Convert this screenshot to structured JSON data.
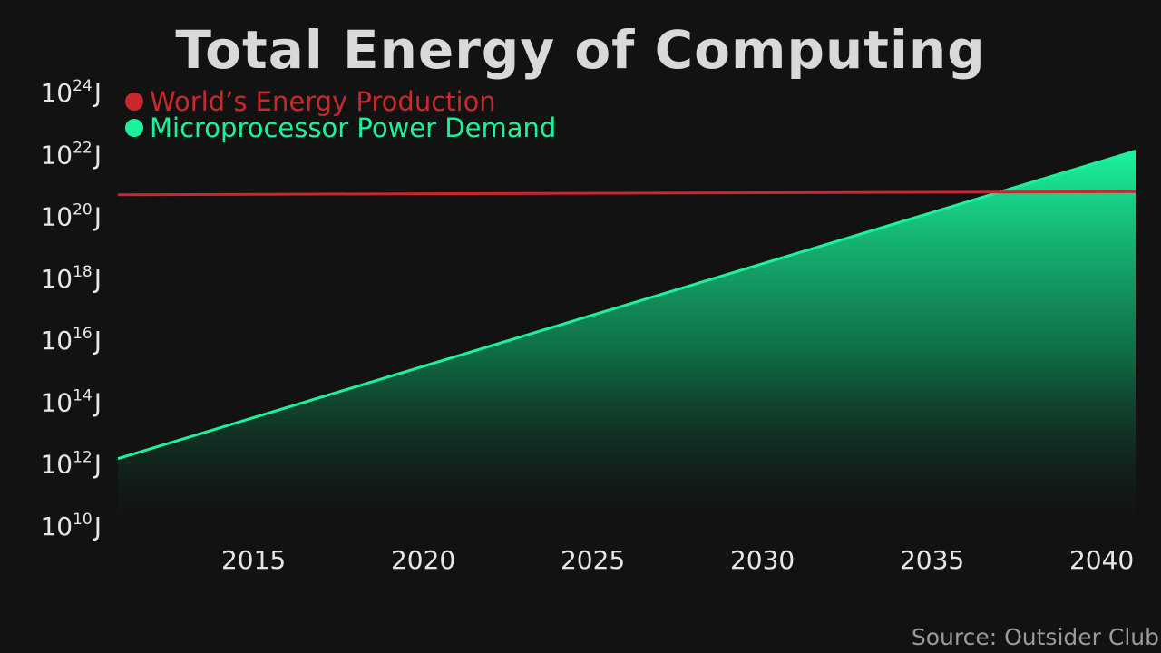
{
  "chart_data": {
    "type": "area",
    "title": "Total Energy of Computing",
    "xlabel": "",
    "ylabel": "",
    "y_scale": "log10",
    "y_unit": "J",
    "xlim": [
      2011,
      2041
    ],
    "ylim": [
      10000000000.0,
      1e+24
    ],
    "x_ticks": [
      2015,
      2020,
      2025,
      2030,
      2035,
      2040
    ],
    "y_ticks": [
      {
        "base": "10",
        "exp": "24",
        "unit": "J",
        "value": 1e+24
      },
      {
        "base": "10",
        "exp": "22",
        "unit": "J",
        "value": 1e+22
      },
      {
        "base": "10",
        "exp": "20",
        "unit": "J",
        "value": 1e+20
      },
      {
        "base": "10",
        "exp": "18",
        "unit": "J",
        "value": 1e+18
      },
      {
        "base": "10",
        "exp": "16",
        "unit": "J",
        "value": 1e+16
      },
      {
        "base": "10",
        "exp": "14",
        "unit": "J",
        "value": 100000000000000.0
      },
      {
        "base": "10",
        "exp": "12",
        "unit": "J",
        "value": 1000000000000.0
      },
      {
        "base": "10",
        "exp": "10",
        "unit": "J",
        "value": 10000000000.0
      }
    ],
    "legend_position": "top-left",
    "grid": false,
    "series": [
      {
        "name": "World’s Energy Production",
        "color": "#c8282e",
        "kind": "line",
        "x": [
          2011,
          2041
        ],
        "y": [
          5e+20,
          6.3e+20
        ]
      },
      {
        "name": "Microprocessor Power Demand",
        "color": "#1cf29c",
        "kind": "area",
        "x": [
          2011,
          2041
        ],
        "y": [
          1500000000000.0,
          1.3e+22
        ]
      }
    ],
    "annotations": []
  },
  "source": "Source: Outsider Club"
}
